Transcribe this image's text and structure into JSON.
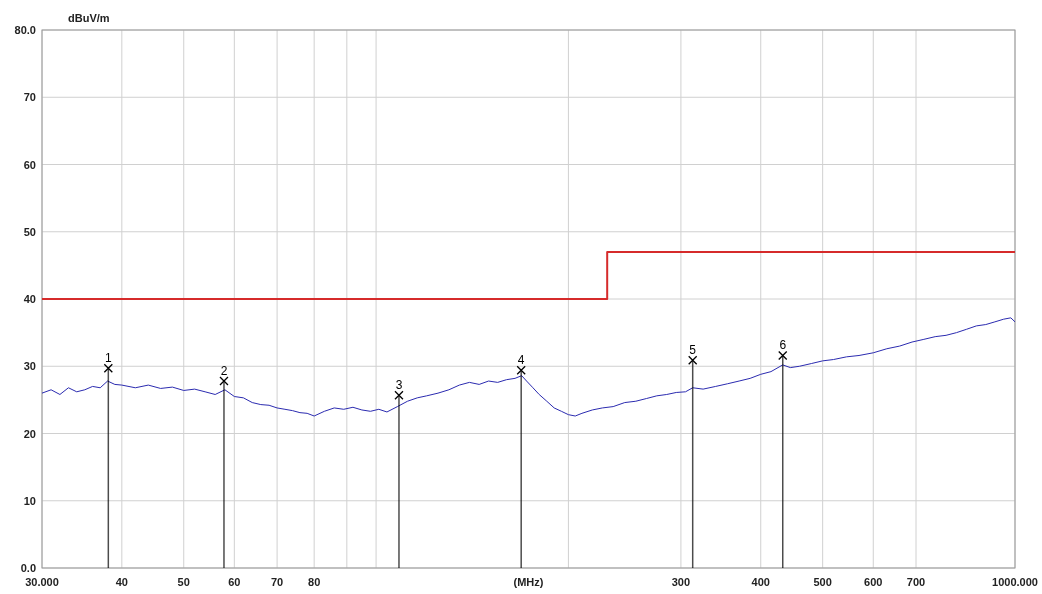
{
  "chart_data": {
    "type": "line",
    "xlabel": "(MHz)",
    "ylabel": "dBuV/m",
    "log": "x",
    "grid": true,
    "xlim": [
      30,
      1000
    ],
    "ylim": [
      0,
      80
    ],
    "xticks": [
      {
        "value": 30,
        "label": "30.000"
      },
      40,
      50,
      60,
      70,
      80,
      {
        "value": 90,
        "label": null
      },
      {
        "value": 100,
        "label": null
      },
      {
        "value": 200,
        "label": null
      },
      300,
      400,
      500,
      600,
      700,
      {
        "value": 1000,
        "label": "1000.000"
      }
    ],
    "yticks": [
      {
        "value": 0,
        "label": "0.0"
      },
      10,
      20,
      30,
      40,
      50,
      60,
      70,
      {
        "value": 80,
        "label": "80.0"
      }
    ],
    "series": [
      {
        "color": "#2b2bb0",
        "x": [
          30,
          31,
          32,
          33,
          34,
          35,
          36,
          37,
          38,
          39,
          40,
          42,
          44,
          46,
          48,
          50,
          52,
          54,
          56,
          58,
          60,
          62,
          64,
          66,
          68,
          70,
          72,
          74,
          76,
          78,
          80,
          83,
          86,
          89,
          92,
          95,
          98,
          101,
          104,
          108,
          112,
          116,
          120,
          125,
          130,
          135,
          140,
          145,
          150,
          155,
          160,
          165,
          169,
          172,
          176,
          180,
          185,
          190,
          195,
          200,
          205,
          210,
          218,
          226,
          235,
          245,
          255,
          265,
          275,
          285,
          295,
          305,
          313,
          325,
          340,
          355,
          370,
          385,
          400,
          415,
          433,
          445,
          460,
          480,
          500,
          520,
          545,
          570,
          600,
          630,
          660,
          690,
          720,
          750,
          780,
          810,
          840,
          870,
          900,
          930,
          960,
          985,
          1000
        ],
        "values": [
          26,
          26.5,
          25.8,
          26.8,
          26.2,
          26.5,
          27,
          26.8,
          27.8,
          27.3,
          27.2,
          26.8,
          27.2,
          26.7,
          26.9,
          26.4,
          26.6,
          26.2,
          25.8,
          26.5,
          25.5,
          25.3,
          24.6,
          24.3,
          24.2,
          23.8,
          23.6,
          23.4,
          23.1,
          23,
          22.6,
          23.3,
          23.8,
          23.6,
          23.9,
          23.5,
          23.3,
          23.6,
          23.2,
          24,
          24.8,
          25.3,
          25.6,
          26,
          26.5,
          27.2,
          27.6,
          27.3,
          27.8,
          27.6,
          28,
          28.2,
          28.6,
          27.8,
          26.8,
          25.8,
          24.8,
          23.8,
          23.3,
          22.8,
          22.6,
          23,
          23.5,
          23.8,
          24,
          24.6,
          24.8,
          25.2,
          25.6,
          25.8,
          26.1,
          26.2,
          26.8,
          26.6,
          27,
          27.4,
          27.8,
          28.2,
          28.8,
          29.2,
          30.2,
          29.8,
          30,
          30.4,
          30.8,
          31,
          31.4,
          31.6,
          32,
          32.6,
          33,
          33.6,
          34,
          34.4,
          34.6,
          35,
          35.5,
          36,
          36.2,
          36.6,
          37,
          37.2,
          36.6
        ]
      },
      {
        "type": "line",
        "color": "#d62b2b",
        "x": [
          30,
          230,
          230,
          1000
        ],
        "values": [
          40,
          40,
          47,
          47
        ]
      },
      {
        "type": "lollipop",
        "color": "#000000",
        "marker": "cross",
        "x": [
          38.1,
          57.8,
          108.6,
          168.7,
          313,
          433
        ],
        "values": [
          29.7,
          27.8,
          25.7,
          29.4,
          30.9,
          31.6
        ]
      }
    ],
    "annotations": [
      {
        "text": "1",
        "x": 38.1,
        "y": 29.7
      },
      {
        "text": "2",
        "x": 57.8,
        "y": 27.8
      },
      {
        "text": "3",
        "x": 108.6,
        "y": 25.7
      },
      {
        "text": "4",
        "x": 168.7,
        "y": 29.4
      },
      {
        "text": "5",
        "x": 313,
        "y": 30.9
      },
      {
        "text": "6",
        "x": 433,
        "y": 31.6
      }
    ]
  }
}
